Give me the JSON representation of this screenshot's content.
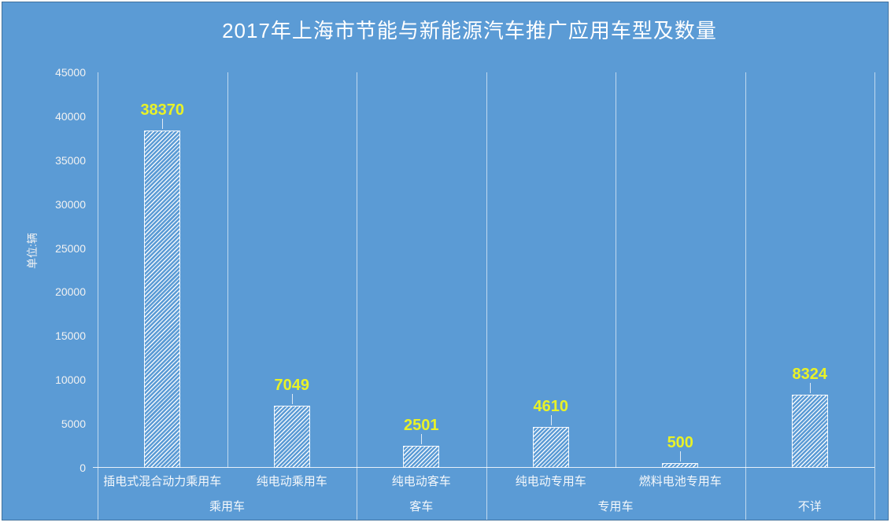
{
  "chart_data": {
    "type": "bar",
    "title": "2017年上海市节能与新能源汽车推广应用车型及数量",
    "unit_label": "单位:辆",
    "categories": [
      "插电式混合动力乘用车",
      "纯电动乘用车",
      "纯电动客车",
      "纯电动专用车",
      "燃料电池专用车",
      ""
    ],
    "groups": [
      {
        "label": "乘用车",
        "span": 2
      },
      {
        "label": "客车",
        "span": 1
      },
      {
        "label": "专用车",
        "span": 2
      },
      {
        "label": "不详",
        "span": 1
      }
    ],
    "values": [
      38370,
      7049,
      2501,
      4610,
      500,
      8324
    ],
    "data_labels": [
      "38370",
      "7049",
      "2501",
      "4610",
      "500",
      "8324"
    ],
    "ylim": [
      0,
      45000
    ],
    "ytick_step": 5000,
    "yticks": [
      0,
      5000,
      10000,
      15000,
      20000,
      25000,
      30000,
      35000,
      40000,
      45000
    ],
    "legend": "none",
    "grid": "vertical category separators only, no horizontal gridlines",
    "bar_style": "white diagonal hatch (/) on blue background with white outline and label leader lines",
    "colors": {
      "background": "#5B9BD5",
      "chart_border": "#41719C",
      "title_text": "#FFFFFF",
      "axis_text": "#F2F2F2",
      "data_label": "#E9F227",
      "gridline": "rgba(255,255,255,0.62)",
      "hatch": "#FFFFFF"
    }
  }
}
